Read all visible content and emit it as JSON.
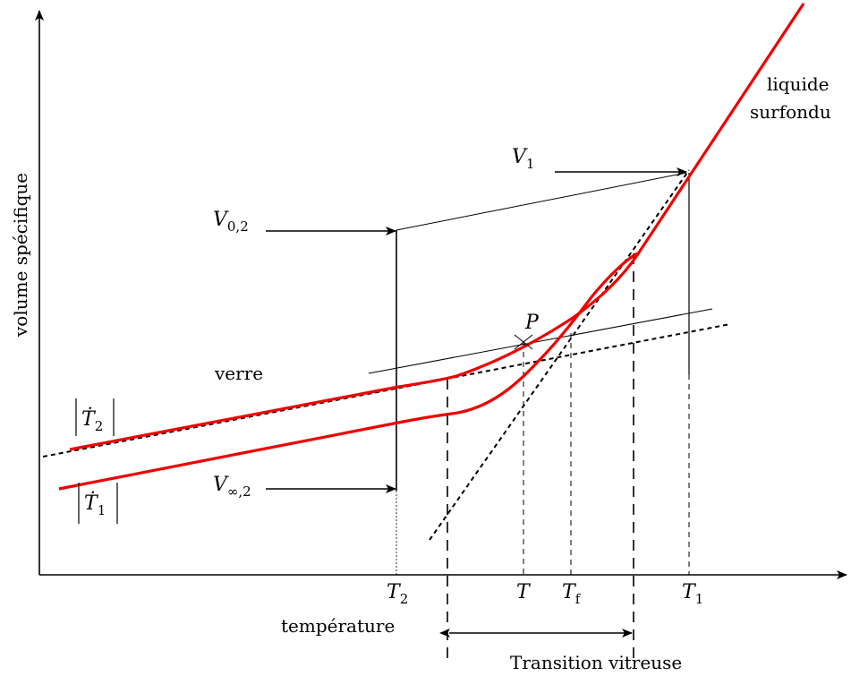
{
  "axes": {
    "y_label": "volume spécifique",
    "x_label": "température"
  },
  "regions": {
    "liquid_line1": "liquide",
    "liquid_line2": "surfondu",
    "glass": "verre",
    "transition": "Transition vitreuse"
  },
  "symbols": {
    "V1": {
      "main": "V",
      "sub": "1"
    },
    "V02": {
      "main": "V",
      "sub": "0,2"
    },
    "Vinf2": {
      "main": "V",
      "sub": "∞,2"
    },
    "P": "P",
    "T2": {
      "main": "T",
      "sub": "2"
    },
    "T": "T",
    "Tf": {
      "main": "T",
      "sub": "f"
    },
    "T1": {
      "main": "T",
      "sub": "1"
    },
    "rate2": {
      "main": "Ṫ",
      "sub": "2"
    },
    "rate1": {
      "main": "Ṫ",
      "sub": "1"
    }
  },
  "colors": {
    "curve": "#ee0000",
    "ink": "#000000"
  }
}
